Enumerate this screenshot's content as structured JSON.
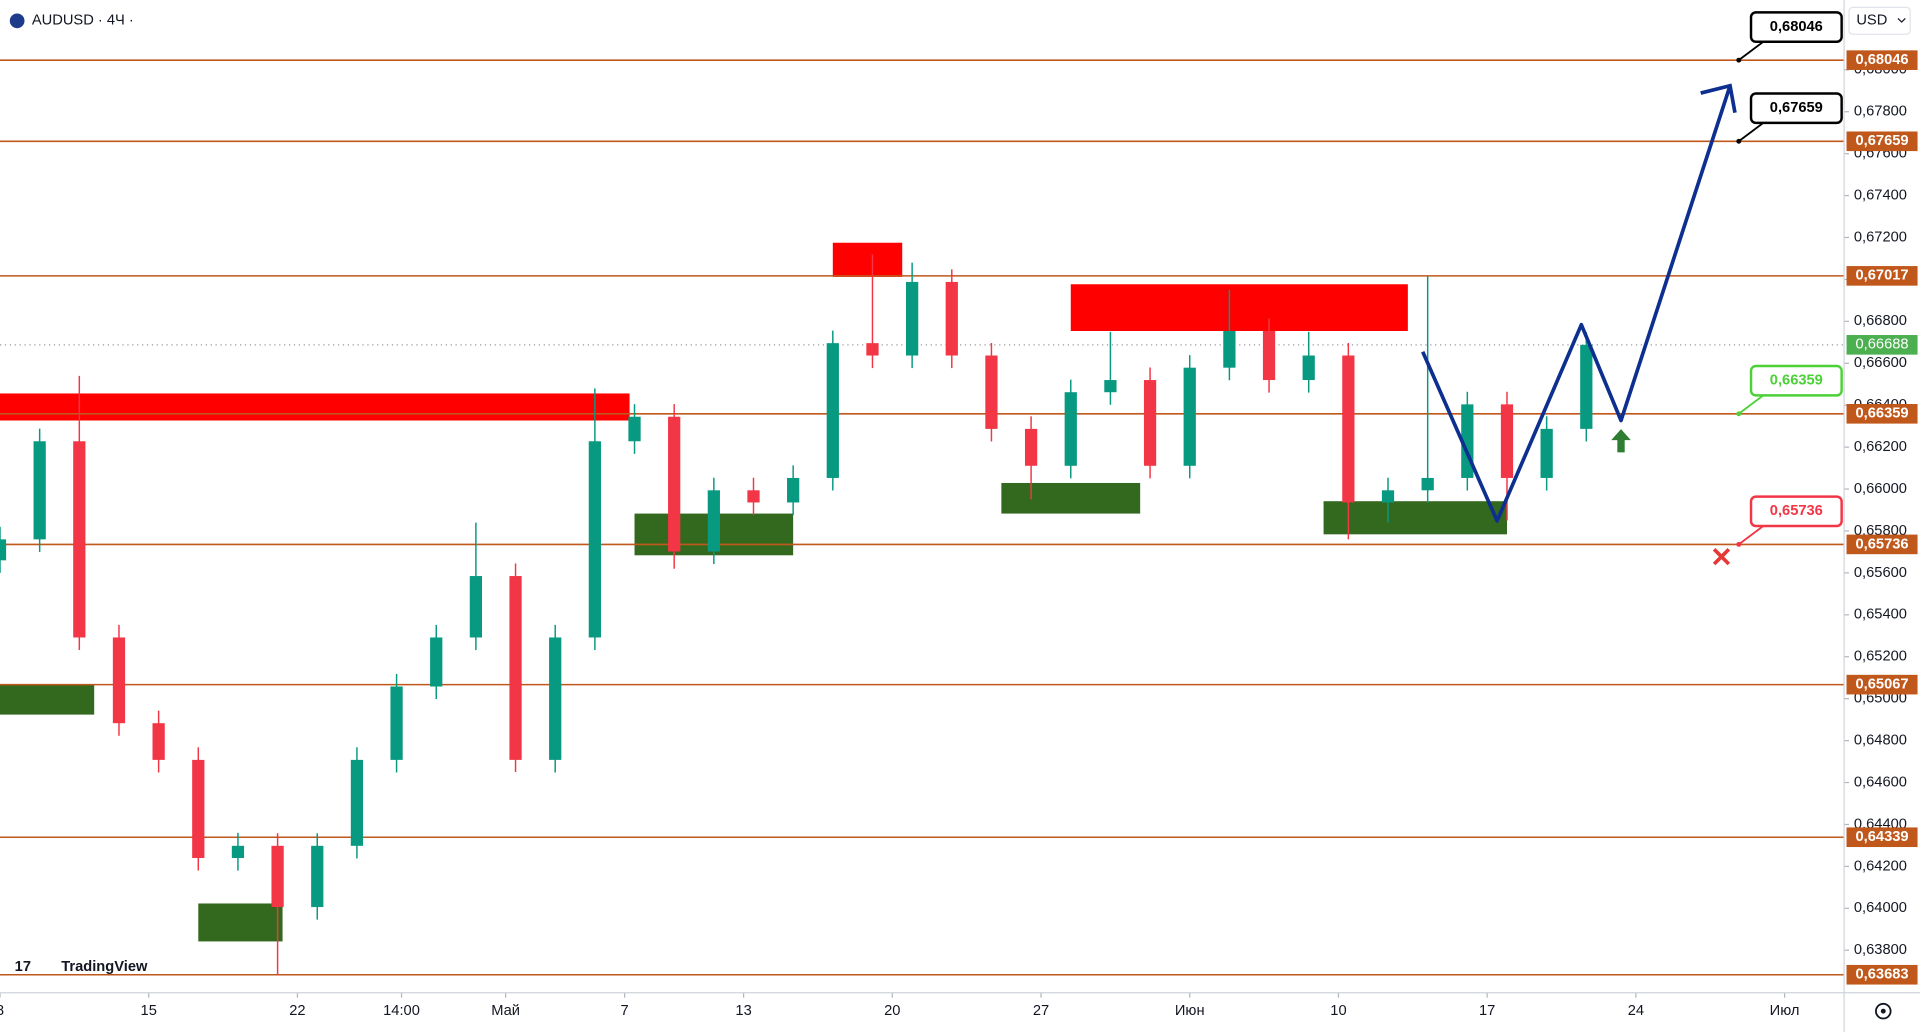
{
  "chart_data": {
    "type": "candlestick",
    "title": "AUDUSD · 4Ч ·",
    "watermark": "TradingView",
    "currency": "USD",
    "up_color": "#089981",
    "down_color": "#f23645",
    "x": [
      0,
      8,
      16,
      24,
      32,
      40,
      48,
      56,
      64,
      72,
      80,
      88,
      96,
      104,
      112,
      120,
      128,
      136,
      144,
      152,
      160,
      168,
      176,
      184,
      192,
      200,
      208,
      216,
      224,
      232,
      240,
      248,
      256,
      264,
      272,
      280,
      288,
      296,
      304,
      312,
      320
    ],
    "open": [
      0.6566,
      0.6576,
      0.66228,
      0.65292,
      0.64883,
      0.64708,
      0.6424,
      0.64298,
      0.64006,
      0.64298,
      0.64708,
      0.65058,
      0.65292,
      0.65585,
      0.64708,
      0.65292,
      0.66228,
      0.66345,
      0.65702,
      0.65994,
      0.65936,
      0.66053,
      0.66696,
      0.66637,
      0.66988,
      0.66637,
      0.66287,
      0.66111,
      0.66462,
      0.6652,
      0.66111,
      0.66579,
      0.66754,
      0.6652,
      0.66637,
      0.65936,
      0.65994,
      0.66053,
      0.66404,
      0.66053,
      0.66287
    ],
    "high": [
      0.6582,
      0.66288,
      0.6654,
      0.65352,
      0.64943,
      0.64768,
      0.6436,
      0.64358,
      0.64358,
      0.64768,
      0.65118,
      0.65352,
      0.6584,
      0.65645,
      0.65352,
      0.6648,
      0.66405,
      0.66405,
      0.66054,
      0.66054,
      0.66113,
      0.66756,
      0.6712,
      0.6708,
      0.67048,
      0.66697,
      0.66347,
      0.66522,
      0.6675,
      0.6658,
      0.66639,
      0.6695,
      0.66814,
      0.6675,
      0.66697,
      0.66054,
      0.67017,
      0.66464,
      0.66464,
      0.66347,
      0.66748
    ],
    "low": [
      0.656,
      0.657,
      0.65232,
      0.64823,
      0.64648,
      0.6418,
      0.6418,
      0.6368,
      0.63946,
      0.64238,
      0.64648,
      0.64998,
      0.65232,
      0.6465,
      0.64648,
      0.65232,
      0.66168,
      0.6562,
      0.65642,
      0.65876,
      0.65876,
      0.65993,
      0.66577,
      0.66577,
      0.66577,
      0.66227,
      0.65951,
      0.66051,
      0.66402,
      0.66051,
      0.66051,
      0.66519,
      0.6646,
      0.6646,
      0.6576,
      0.6584,
      0.65934,
      0.65993,
      0.6585,
      0.65993,
      0.66227
    ],
    "close": [
      0.6576,
      0.66228,
      0.65292,
      0.64883,
      0.64708,
      0.6424,
      0.64298,
      0.64006,
      0.64298,
      0.64708,
      0.65058,
      0.65292,
      0.65585,
      0.64708,
      0.65292,
      0.66228,
      0.66345,
      0.65702,
      0.65994,
      0.65936,
      0.66053,
      0.66696,
      0.66637,
      0.66988,
      0.66637,
      0.66287,
      0.66111,
      0.66462,
      0.6652,
      0.66111,
      0.66579,
      0.66754,
      0.6652,
      0.66637,
      0.65936,
      0.65994,
      0.66053,
      0.66404,
      0.66053,
      0.66287,
      0.66688
    ],
    "xlim": [
      0,
      372
    ],
    "xticks": [
      {
        "value": 0,
        "label": "8"
      },
      {
        "value": 30,
        "label": "15"
      },
      {
        "value": 60,
        "label": "22"
      },
      {
        "value": 81,
        "label": "14:00"
      },
      {
        "value": 102,
        "label": "Май"
      },
      {
        "value": 126,
        "label": "7"
      },
      {
        "value": 150,
        "label": "13"
      },
      {
        "value": 180,
        "label": "20"
      },
      {
        "value": 210,
        "label": "27"
      },
      {
        "value": 240,
        "label": "Июн"
      },
      {
        "value": 270,
        "label": "10"
      },
      {
        "value": 300,
        "label": "17"
      },
      {
        "value": 330,
        "label": "24"
      },
      {
        "value": 360,
        "label": "Июл"
      }
    ],
    "ylim": [
      0.63597,
      0.68333
    ],
    "yticks": [
      {
        "value": 0.638,
        "label": "0,63800"
      },
      {
        "value": 0.64,
        "label": "0,64000"
      },
      {
        "value": 0.642,
        "label": "0,64200"
      },
      {
        "value": 0.644,
        "label": "0,64400"
      },
      {
        "value": 0.646,
        "label": "0,64600"
      },
      {
        "value": 0.648,
        "label": "0,64800"
      },
      {
        "value": 0.65,
        "label": "0,65000"
      },
      {
        "value": 0.652,
        "label": "0,65200"
      },
      {
        "value": 0.654,
        "label": "0,65400"
      },
      {
        "value": 0.656,
        "label": "0,65600"
      },
      {
        "value": 0.658,
        "label": "0,65800"
      },
      {
        "value": 0.66,
        "label": "0,66000"
      },
      {
        "value": 0.662,
        "label": "0,66200"
      },
      {
        "value": 0.664,
        "label": "0,66400"
      },
      {
        "value": 0.666,
        "label": "0,66600"
      },
      {
        "value": 0.668,
        "label": "0,66800"
      },
      {
        "value": 0.67,
        "label": "0,67000"
      },
      {
        "value": 0.672,
        "label": "0,67200"
      },
      {
        "value": 0.674,
        "label": "0,67400"
      },
      {
        "value": 0.676,
        "label": "0,67600"
      },
      {
        "value": 0.678,
        "label": "0,67800"
      },
      {
        "value": 0.68,
        "label": "0,68000"
      }
    ],
    "level_color": "#c0571b",
    "levels": [
      {
        "value": 0.68046,
        "label": "0,68046"
      },
      {
        "value": 0.67659,
        "label": "0,67659"
      },
      {
        "value": 0.67017,
        "label": "0,67017"
      },
      {
        "value": 0.66359,
        "label": "0,66359"
      },
      {
        "value": 0.65736,
        "label": "0,65736"
      },
      {
        "value": 0.65067,
        "label": "0,65067"
      },
      {
        "value": 0.64339,
        "label": "0,64339"
      },
      {
        "value": 0.63683,
        "label": "0,63683"
      }
    ],
    "current_price": {
      "value": 0.66688,
      "label": "0,66688",
      "color": "#4caf50"
    },
    "zones": [
      {
        "x": [
          0,
          127
        ],
        "y": [
          0.66327,
          0.66456
        ],
        "color": "#ff0000"
      },
      {
        "x": [
          168,
          182
        ],
        "y": [
          0.67012,
          0.67175
        ],
        "color": "#ff0000"
      },
      {
        "x": [
          216,
          284
        ],
        "y": [
          0.66754,
          0.66977
        ],
        "color": "#ff0000"
      },
      {
        "x": [
          0,
          19
        ],
        "y": [
          0.64924,
          0.6507
        ],
        "color": "#33691e"
      },
      {
        "x": [
          40,
          57
        ],
        "y": [
          0.63842,
          0.64023
        ],
        "color": "#33691e"
      },
      {
        "x": [
          128,
          160
        ],
        "y": [
          0.65684,
          0.65883
        ],
        "color": "#33691e"
      },
      {
        "x": [
          202,
          230
        ],
        "y": [
          0.65883,
          0.66029
        ],
        "color": "#33691e"
      },
      {
        "x": [
          267,
          304
        ],
        "y": [
          0.65784,
          0.65942
        ],
        "color": "#33691e"
      }
    ],
    "projection": {
      "x": [
        287,
        302,
        319,
        327,
        349
      ],
      "y": [
        0.66655,
        0.65848,
        0.66784,
        0.66327,
        0.67924
      ],
      "color": "#0d2f8f"
    },
    "callouts": [
      {
        "value": 0.68046,
        "label": "0,68046",
        "color": "#000000"
      },
      {
        "value": 0.67659,
        "label": "0,67659",
        "color": "#000000"
      },
      {
        "value": 0.66359,
        "label": "0,66359",
        "color": "#4cd137"
      },
      {
        "value": 0.65736,
        "label": "0,65736",
        "color": "#f23645"
      }
    ]
  }
}
